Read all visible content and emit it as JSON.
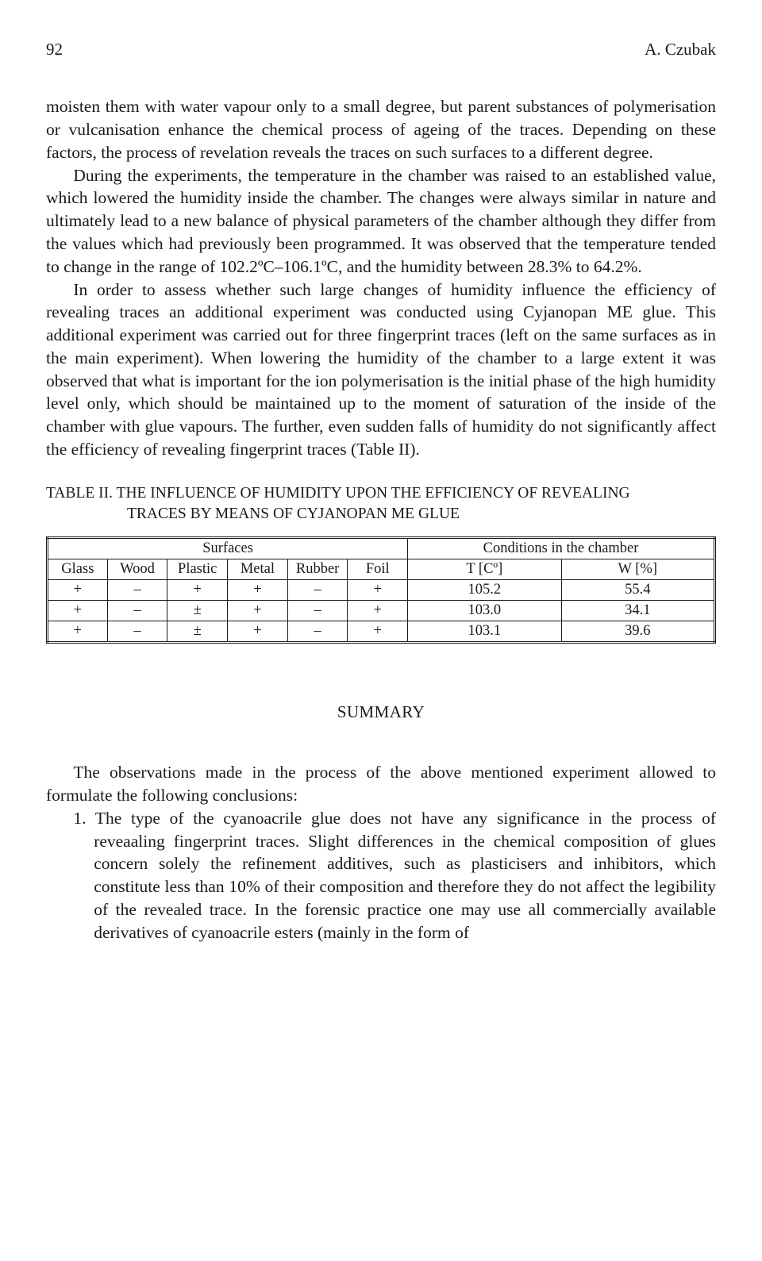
{
  "page_number": "92",
  "running_author": "A. Czubak",
  "paragraphs": {
    "p1": "moisten them with water vapour only to a small degree, but parent substances of polymerisation or vulcanisation enhance the chemical process of ageing of the traces. Depending on these factors, the process of revelation reveals the traces on such surfaces to a different degree.",
    "p2": "During the experiments, the temperature in the chamber was raised to an established value, which lowered the humidity inside the chamber. The changes were always similar in nature and ultimately lead to a new balance of physical parameters of the chamber although they differ from the values which had previously been programmed. It was observed that the temperature tended to change in the range of 102.2ºC–106.1ºC, and the humidity between 28.3% to 64.2%.",
    "p3": "In order to assess whether such large changes of humidity influence the efficiency of revealing traces an additional experiment was conducted using Cyjanopan ME glue. This additional experiment was carried out for three fingerprint traces (left on the same surfaces as in the main experiment). When lowering the humidity of the chamber to a large extent it was observed that what is important for the ion polymerisation is the initial phase of the high humidity level only, which should be maintained up to the moment of saturation of the inside of the chamber with glue vapours. The further, even sudden falls of humidity do not significantly affect the efficiency of revealing fingerprint traces (Table II)."
  },
  "table": {
    "title_leadin": "TABLE II. ",
    "title_rest1": "THE INFLUENCE OF HUMIDITY UPON THE EFFICIENCY OF REVEALING",
    "title_rest2": "TRACES BY MEANS OF CYJANOPAN ME GLUE",
    "group_surfaces": "Surfaces",
    "group_conditions": "Conditions in the chamber",
    "columns": {
      "glass": "Glass",
      "wood": "Wood",
      "plastic": "Plastic",
      "metal": "Metal",
      "rubber": "Rubber",
      "foil": "Foil",
      "temp": "T [Cº]",
      "hum": "W [%]"
    },
    "rows": [
      {
        "glass": "+",
        "wood": "–",
        "plastic": "+",
        "metal": "+",
        "rubber": "–",
        "foil": "+",
        "temp": "105.2",
        "hum": "55.4"
      },
      {
        "glass": "+",
        "wood": "–",
        "plastic": "±",
        "metal": "+",
        "rubber": "–",
        "foil": "+",
        "temp": "103.0",
        "hum": "34.1"
      },
      {
        "glass": "+",
        "wood": "–",
        "plastic": "±",
        "metal": "+",
        "rubber": "–",
        "foil": "+",
        "temp": "103.1",
        "hum": "39.6"
      }
    ],
    "col_widths_pct": [
      9,
      9,
      9,
      9,
      9,
      9,
      23,
      23
    ]
  },
  "summary": {
    "heading": "SUMMARY",
    "intro": "The observations made in the process of the above mentioned experiment allowed to formulate the following conclusions:",
    "item1": "1. The type of the cyanoacrile glue does not have any significance in the process of reveaaling fingerprint traces. Slight differences in the chemical composition of glues concern solely the refinement additives, such as plasticisers and inhibitors, which constitute less than 10% of their composition and therefore they do not affect the legibility of the revealed trace. In the forensic practice one may use all commercially available derivatives of cyanoacrile esters (mainly in the form of"
  }
}
